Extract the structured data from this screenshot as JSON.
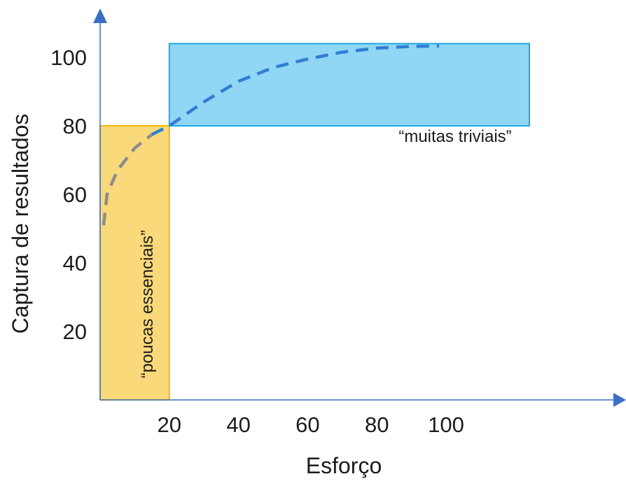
{
  "chart_data": {
    "type": "line",
    "title": "",
    "xlabel": "Esforço",
    "ylabel": "Captura de resultados",
    "xlim": [
      0,
      117
    ],
    "ylim": [
      0,
      117
    ],
    "x_ticks": [
      20,
      40,
      60,
      80,
      100
    ],
    "y_ticks": [
      20,
      40,
      60,
      80,
      100
    ],
    "x_tick_labels": [
      "20",
      "40",
      "60",
      "80",
      "100"
    ],
    "y_tick_labels": [
      "20",
      "40",
      "60",
      "80",
      "100"
    ],
    "grid": false,
    "curve": {
      "style": "dashed",
      "points": [
        {
          "x": 1,
          "y": 51,
          "color": "#8c8c8c"
        },
        {
          "x": 2,
          "y": 60,
          "color": "#8c8c8c"
        },
        {
          "x": 5,
          "y": 67,
          "color": "#8c8c8c"
        },
        {
          "x": 10,
          "y": 73.5,
          "color": "#8c8c8c"
        },
        {
          "x": 15,
          "y": 77.5,
          "color": "#8c8c8c"
        },
        {
          "x": 20,
          "y": 80,
          "color": "#2f7fd3"
        },
        {
          "x": 30,
          "y": 87,
          "color": "#2f7fd3"
        },
        {
          "x": 40,
          "y": 93,
          "color": "#2f7fd3"
        },
        {
          "x": 50,
          "y": 97,
          "color": "#2f7fd3"
        },
        {
          "x": 60,
          "y": 99.5,
          "color": "#2f7fd3"
        },
        {
          "x": 70,
          "y": 101.5,
          "color": "#2f7fd3"
        },
        {
          "x": 80,
          "y": 102.7,
          "color": "#2f7fd3"
        },
        {
          "x": 90,
          "y": 103.2,
          "color": "#2f7fd3"
        },
        {
          "x": 98,
          "y": 103.3,
          "color": "#2f7fd3"
        }
      ]
    },
    "regions": [
      {
        "label": "“poucas essenciais”",
        "x": [
          0,
          20
        ],
        "y": [
          0,
          80
        ],
        "fill": "#fad97a",
        "stroke": "#f2b705"
      },
      {
        "label": "“muitas triviais”",
        "x": [
          20,
          125
        ],
        "y": [
          80,
          104
        ],
        "fill": "#90d6f5",
        "stroke": "#1ea8e6"
      }
    ],
    "colors": {
      "axis": "#3b6fc7",
      "text": "#1c1c1c"
    }
  }
}
